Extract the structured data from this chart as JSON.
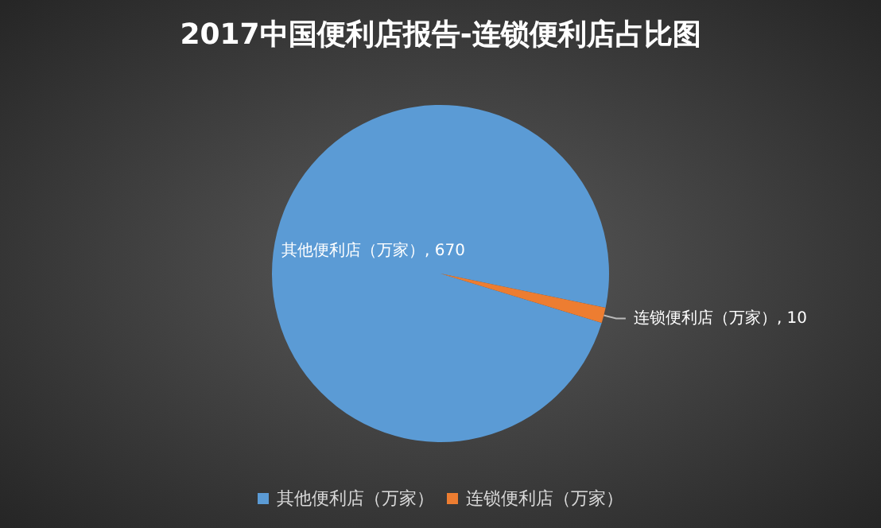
{
  "chart_data": {
    "type": "pie",
    "title": "2017中国便利店报告-连锁便利店占比图",
    "categories": [
      "其他便利店（万家）",
      "连锁便利店（万家）"
    ],
    "values": [
      670,
      10
    ],
    "colors": [
      "#5b9bd5",
      "#ed7d31"
    ],
    "value_labels": [
      "其他便利店（万家）, 670",
      "连锁便利店（万家）, 10"
    ],
    "legend": "bottom"
  }
}
